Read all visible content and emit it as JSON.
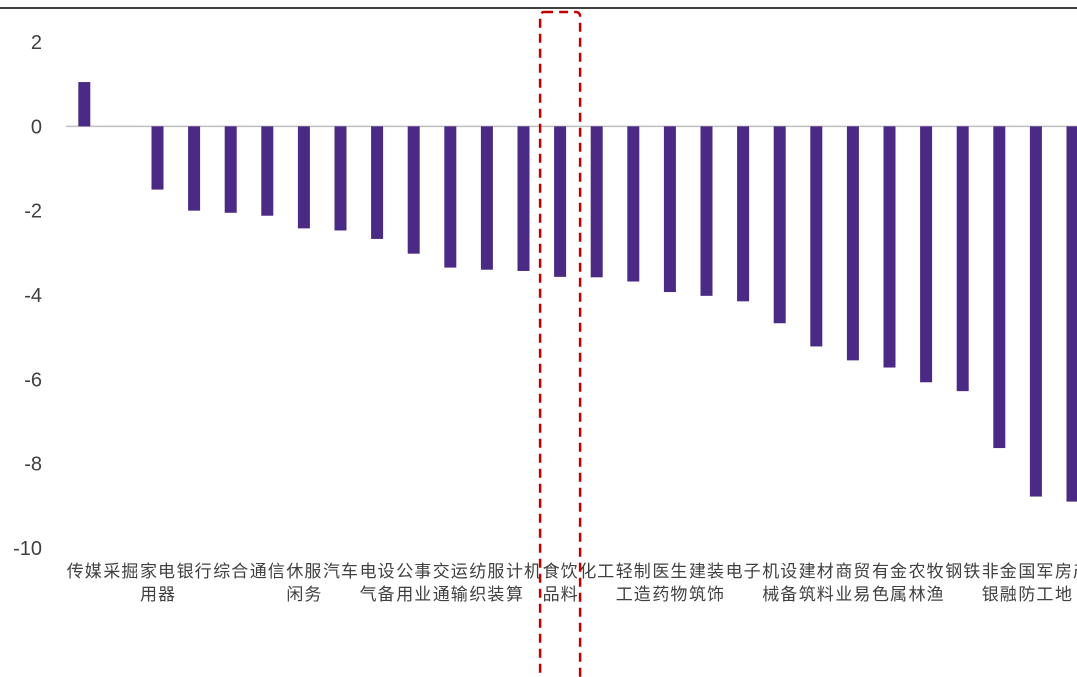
{
  "chart_data": {
    "type": "bar",
    "title": "",
    "title_fragment": "",
    "xlabel": "",
    "ylabel": "",
    "ylim": [
      -10,
      2
    ],
    "yticks": [
      2,
      0,
      -2,
      -4,
      -6,
      -8,
      -10
    ],
    "grid": false,
    "legend": "none",
    "bar_color": "#4b2a85",
    "highlight_color": "#c00000",
    "highlight_category": "食品饮料",
    "categories": [
      "传媒",
      "采掘",
      "家用电器",
      "银行",
      "综合",
      "通信",
      "休闲服务",
      "汽车",
      "电气设备",
      "公用事业",
      "交通运输",
      "纺织服装",
      "计算机",
      "食品饮料",
      "化工",
      "轻工制造",
      "医药生物",
      "建筑装饰",
      "电子",
      "机械设备",
      "建筑材料",
      "商业贸易",
      "有色金属",
      "农林牧渔",
      "钢铁",
      "非银金融",
      "国防军工",
      "房地产"
    ],
    "values": [
      1.05,
      0.0,
      -1.5,
      -2.0,
      -2.05,
      -2.12,
      -2.42,
      -2.47,
      -2.67,
      -3.02,
      -3.35,
      -3.4,
      -3.43,
      -3.57,
      -3.58,
      -3.68,
      -3.93,
      -4.02,
      -4.15,
      -4.67,
      -5.22,
      -5.55,
      -5.72,
      -6.07,
      -6.28,
      -7.63,
      -8.78,
      -8.9
    ]
  }
}
